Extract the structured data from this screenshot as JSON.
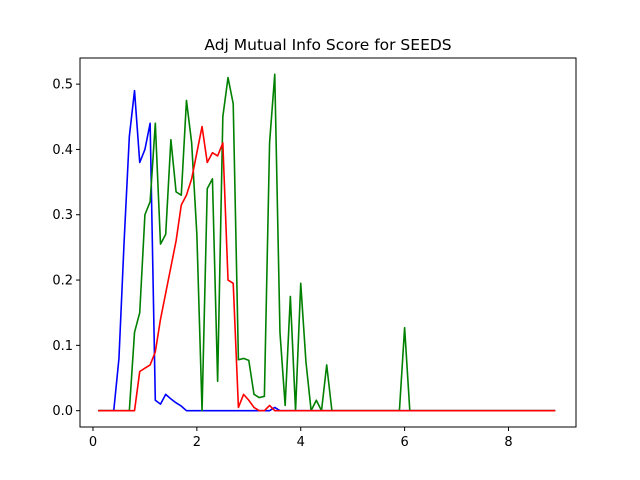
{
  "chart_data": {
    "type": "line",
    "title": "Adj Mutual Info Score for SEEDS",
    "xlabel": "",
    "ylabel": "",
    "xlim": [
      -0.25,
      9.3
    ],
    "ylim": [
      -0.025,
      0.54
    ],
    "xticks": [
      0,
      2,
      4,
      6,
      8
    ],
    "yticks": [
      0.0,
      0.1,
      0.2,
      0.3,
      0.4,
      0.5
    ],
    "grid": false,
    "series": [
      {
        "color": "#0000ff",
        "x": [
          0.1,
          0.3,
          0.4,
          0.5,
          0.6,
          0.7,
          0.8,
          0.9,
          1.0,
          1.1,
          1.2,
          1.3,
          1.4,
          1.5,
          1.6,
          1.7,
          1.8,
          1.9,
          2.0,
          3.3,
          3.4,
          3.5,
          3.6,
          8.9
        ],
        "y": [
          0.0,
          0.0,
          0.0,
          0.08,
          0.26,
          0.42,
          0.49,
          0.38,
          0.4,
          0.44,
          0.016,
          0.01,
          0.025,
          0.018,
          0.012,
          0.007,
          0.0,
          0.0,
          0.0,
          0.0,
          0.0,
          0.005,
          0.0,
          0.0
        ]
      },
      {
        "color": "#008000",
        "x": [
          0.1,
          0.7,
          0.8,
          0.9,
          1.0,
          1.1,
          1.2,
          1.3,
          1.4,
          1.5,
          1.6,
          1.7,
          1.8,
          1.9,
          2.0,
          2.1,
          2.2,
          2.3,
          2.4,
          2.5,
          2.6,
          2.7,
          2.8,
          2.9,
          3.0,
          3.1,
          3.2,
          3.3,
          3.4,
          3.5,
          3.6,
          3.7,
          3.8,
          3.9,
          4.0,
          4.1,
          4.2,
          4.3,
          4.4,
          4.5,
          4.6,
          4.7,
          5.8,
          5.9,
          6.0,
          6.1,
          6.2,
          8.9
        ],
        "y": [
          0.0,
          0.0,
          0.12,
          0.15,
          0.3,
          0.32,
          0.44,
          0.255,
          0.27,
          0.415,
          0.335,
          0.33,
          0.475,
          0.41,
          0.27,
          0.0,
          0.34,
          0.355,
          0.045,
          0.45,
          0.51,
          0.47,
          0.078,
          0.08,
          0.077,
          0.025,
          0.02,
          0.022,
          0.41,
          0.515,
          0.12,
          0.008,
          0.175,
          0.0,
          0.195,
          0.075,
          0.0,
          0.016,
          0.0,
          0.07,
          0.0,
          0.0,
          0.0,
          0.0,
          0.127,
          0.0,
          0.0,
          0.0
        ]
      },
      {
        "color": "#ff0000",
        "x": [
          0.1,
          0.6,
          0.7,
          0.8,
          0.9,
          1.0,
          1.1,
          1.2,
          1.3,
          1.4,
          1.5,
          1.6,
          1.7,
          1.8,
          1.9,
          2.0,
          2.1,
          2.2,
          2.3,
          2.4,
          2.5,
          2.6,
          2.7,
          2.8,
          2.9,
          3.0,
          3.1,
          3.2,
          3.3,
          3.4,
          3.5,
          3.6,
          8.9
        ],
        "y": [
          0.0,
          0.0,
          0.0,
          0.0,
          0.06,
          0.065,
          0.07,
          0.09,
          0.14,
          0.18,
          0.22,
          0.26,
          0.315,
          0.33,
          0.355,
          0.395,
          0.435,
          0.38,
          0.395,
          0.39,
          0.41,
          0.2,
          0.195,
          0.005,
          0.025,
          0.016,
          0.005,
          0.0,
          0.0,
          0.008,
          0.0,
          0.0,
          0.0
        ]
      }
    ]
  }
}
